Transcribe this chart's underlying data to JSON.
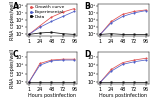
{
  "x_ticks": [
    1,
    24,
    48,
    72,
    96
  ],
  "panels": [
    {
      "label": "A",
      "lines": [
        {
          "label": "Growth curve",
          "color": "#e05050",
          "style": "-",
          "marker": "o",
          "y": [
            4.0,
            5.2,
            6.4,
            7.1,
            7.6
          ]
        },
        {
          "label": "Experimental",
          "color": "#5060c8",
          "style": "-",
          "marker": "o",
          "y": [
            4.0,
            5.0,
            5.8,
            6.5,
            7.2
          ]
        },
        {
          "label": "Data",
          "color": "#111111",
          "style": "-",
          "marker": "s",
          "y": [
            4.0,
            4.2,
            4.3,
            4.1,
            4.0
          ]
        }
      ],
      "ylim": [
        3.8,
        8.2
      ],
      "yticks": [
        4,
        5,
        6,
        7,
        8
      ],
      "ytick_labels": [
        "10⁴",
        "10⁵",
        "10⁶",
        "10⁷",
        "10⁸"
      ],
      "has_ylabel": true
    },
    {
      "label": "B",
      "lines": [
        {
          "label": "Growth curve",
          "color": "#e05050",
          "style": "-",
          "marker": "o",
          "y": [
            4.0,
            5.8,
            6.8,
            7.2,
            7.4
          ]
        },
        {
          "label": "Experimental",
          "color": "#5060c8",
          "style": "-",
          "marker": "o",
          "y": [
            4.0,
            5.6,
            6.5,
            7.0,
            7.3
          ]
        },
        {
          "label": "Data",
          "color": "#111111",
          "style": "-",
          "marker": "s",
          "y": [
            4.0,
            4.1,
            4.0,
            4.0,
            4.0
          ]
        }
      ],
      "ylim": [
        3.8,
        8.2
      ],
      "yticks": [
        4,
        5,
        6,
        7,
        8
      ],
      "ytick_labels": [
        "10⁴",
        "10⁵",
        "10⁶",
        "10⁷",
        "10⁸"
      ],
      "has_ylabel": false
    },
    {
      "label": "C",
      "lines": [
        {
          "label": "Growth curve",
          "color": "#e05050",
          "style": "-",
          "marker": "o",
          "y": [
            4.0,
            6.2,
            6.6,
            6.7,
            6.7
          ]
        },
        {
          "label": "Experimental",
          "color": "#5060c8",
          "style": "-",
          "marker": "o",
          "y": [
            4.0,
            6.0,
            6.5,
            6.6,
            6.6
          ]
        },
        {
          "label": "Data",
          "color": "#111111",
          "style": "-",
          "marker": "s",
          "y": [
            4.0,
            4.0,
            4.0,
            4.0,
            4.0
          ]
        }
      ],
      "ylim": [
        3.8,
        7.5
      ],
      "yticks": [
        4,
        5,
        6,
        7
      ],
      "ytick_labels": [
        "10⁴",
        "10⁵",
        "10⁶",
        "10⁷"
      ],
      "has_ylabel": true
    },
    {
      "label": "D",
      "lines": [
        {
          "label": "Growth curve",
          "color": "#e05050",
          "style": "-",
          "marker": "o",
          "y": [
            4.0,
            5.5,
            6.3,
            6.6,
            6.8
          ]
        },
        {
          "label": "Experimental",
          "color": "#5060c8",
          "style": "-",
          "marker": "o",
          "y": [
            4.0,
            5.3,
            6.1,
            6.4,
            6.6
          ]
        },
        {
          "label": "Data",
          "color": "#111111",
          "style": "-",
          "marker": "s",
          "y": [
            4.0,
            4.0,
            4.0,
            4.0,
            4.0
          ]
        }
      ],
      "ylim": [
        3.8,
        7.5
      ],
      "yticks": [
        4,
        5,
        6,
        7
      ],
      "ytick_labels": [
        "10⁴",
        "10⁵",
        "10⁶",
        "10⁷"
      ],
      "has_ylabel": false
    }
  ],
  "xlabel": "Hours postinfection",
  "ylabel": "RNA copies/well",
  "legend_labels": [
    "Growth curve",
    "Experimental",
    "Data"
  ],
  "legend_colors": [
    "#e05050",
    "#5060c8",
    "#111111"
  ],
  "legend_markers": [
    "o",
    "o",
    "s"
  ],
  "background_color": "#ffffff",
  "panel_fontsize": 5.5,
  "tick_fontsize": 3.5,
  "label_fontsize": 3.5,
  "legend_fontsize": 3.2
}
